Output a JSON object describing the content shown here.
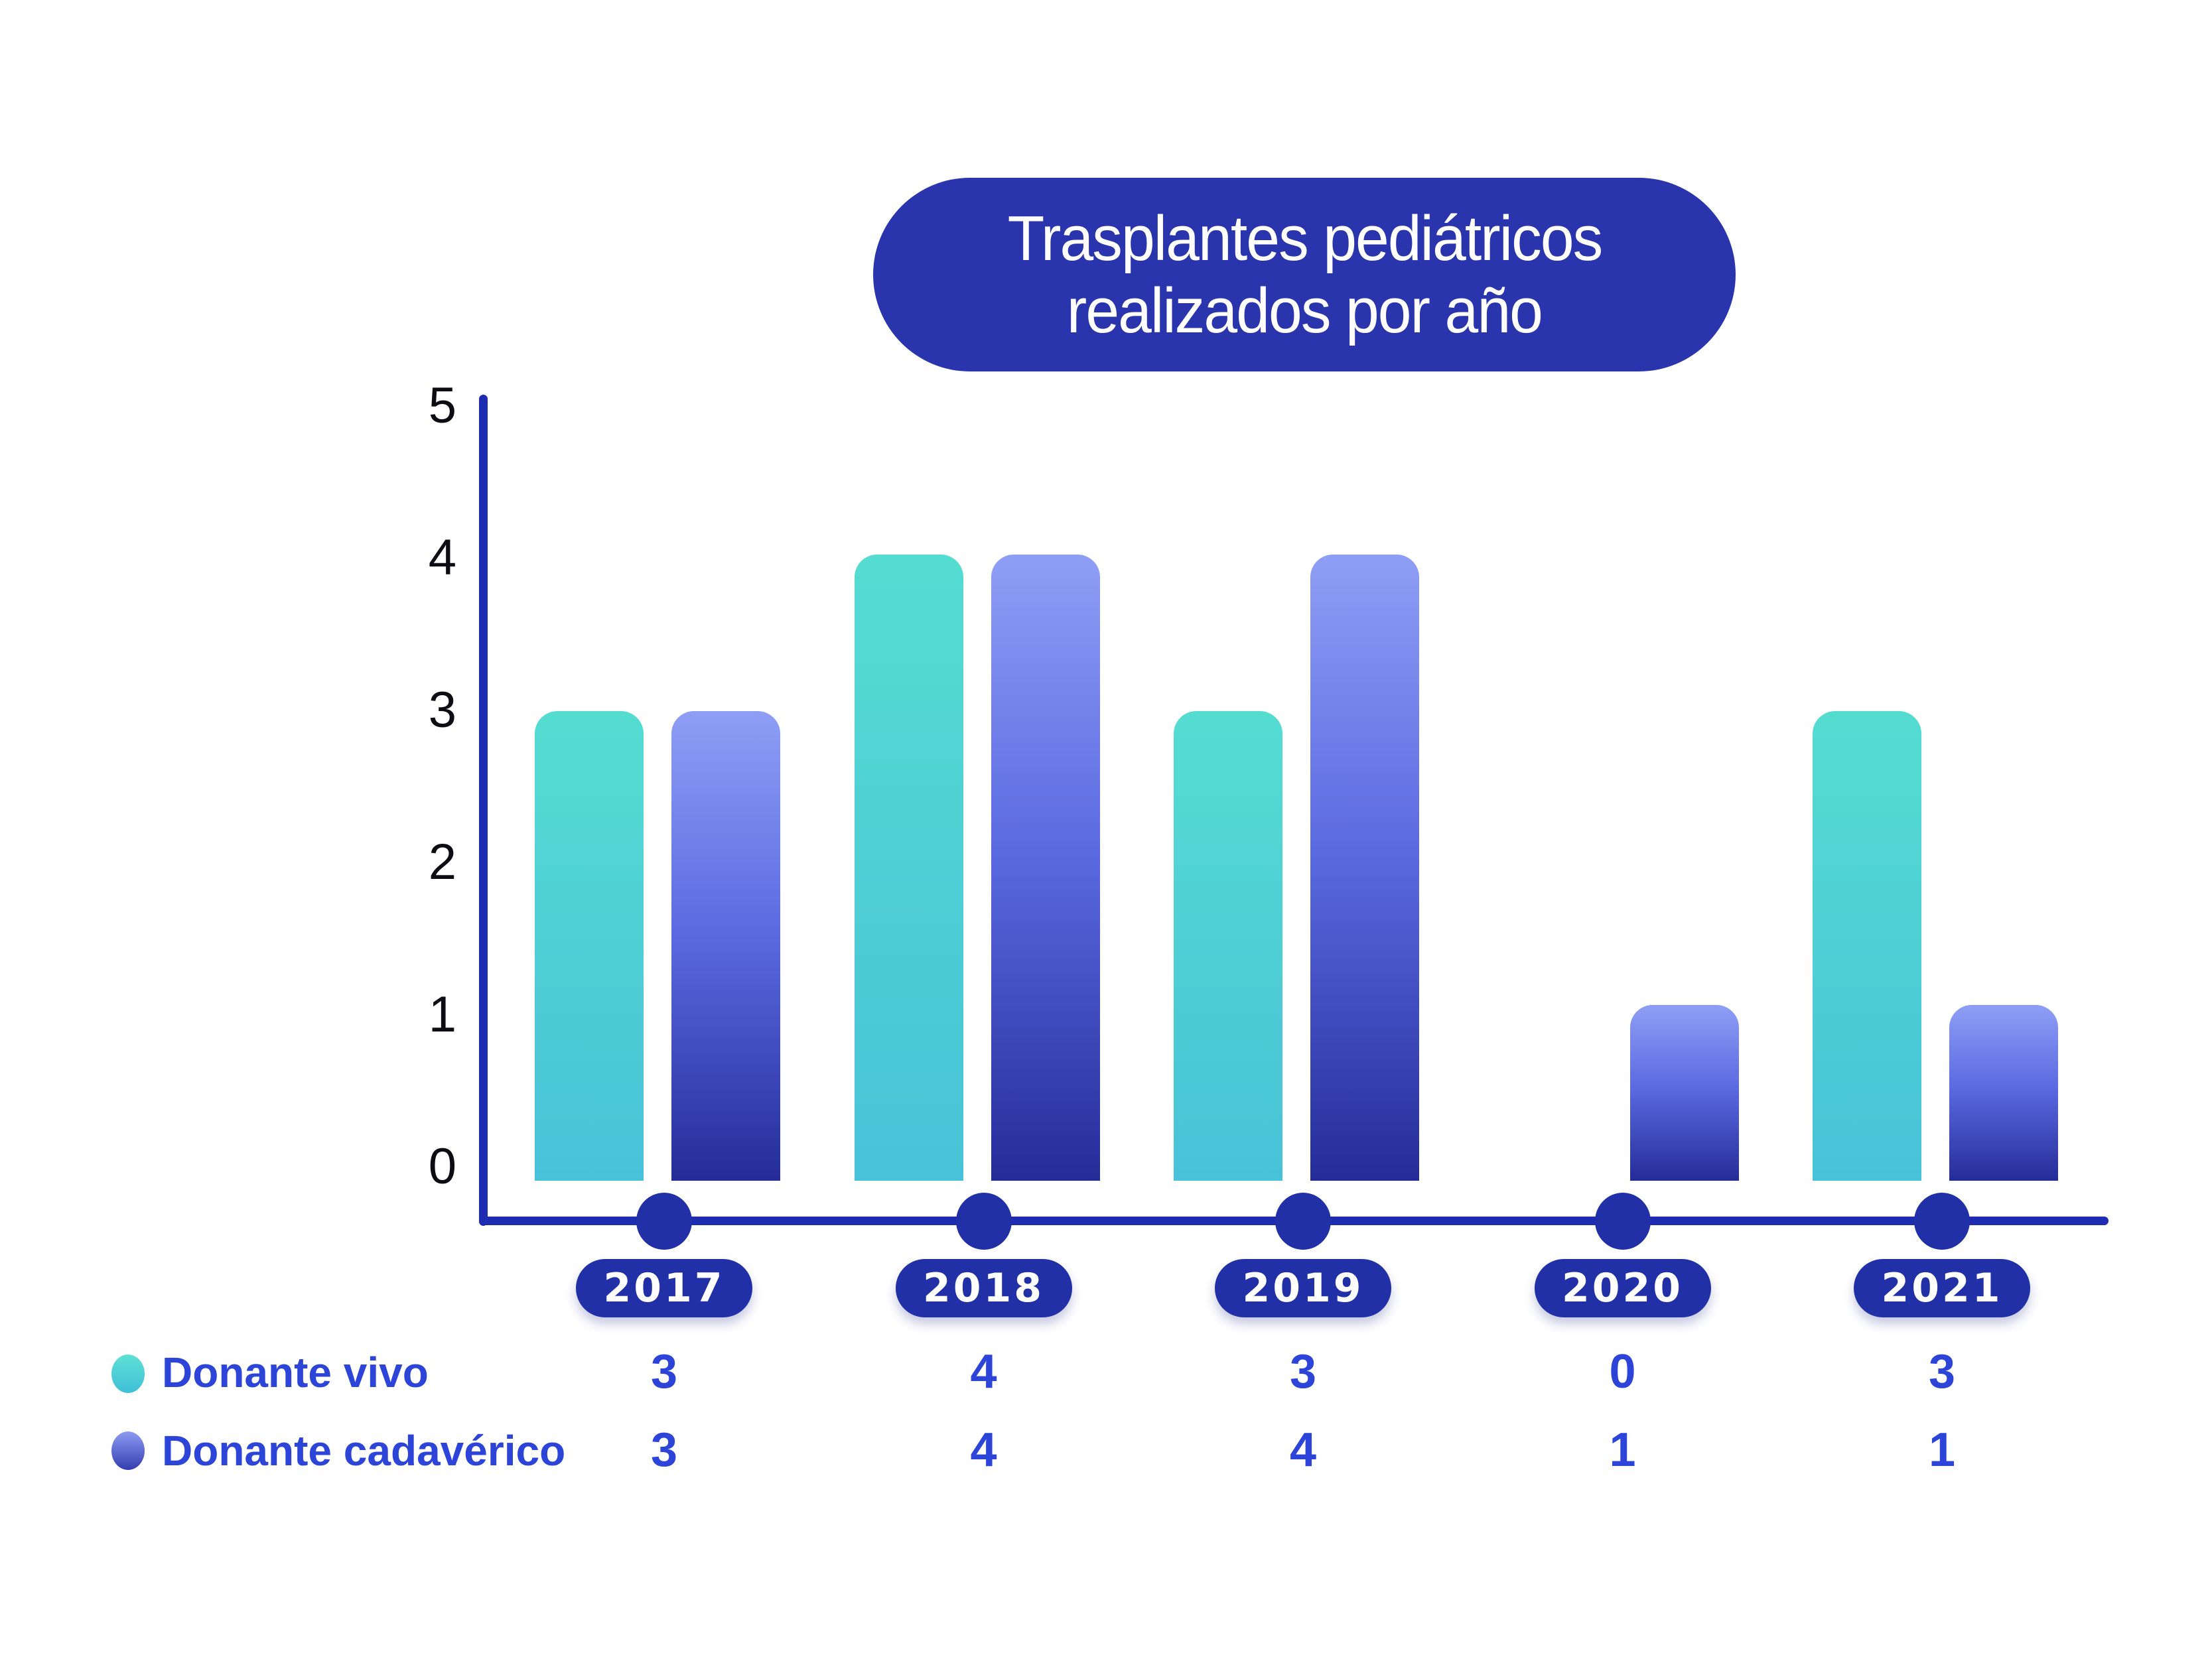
{
  "title": {
    "line1": "Trasplantes pediátricos",
    "line2": "realizados por año"
  },
  "y_axis": {
    "ticks": [
      "5",
      "4",
      "3",
      "2",
      "1",
      "0"
    ]
  },
  "legend": {
    "vivo_label": "Donante vivo",
    "cadaverico_label": "Donante cadavérico"
  },
  "colors": {
    "navy_pill": "#2A34AD",
    "navy_axis": "#1D2CB1",
    "teal_top": "#55DCD1",
    "teal_bottom": "#48C2D8",
    "blue_top": "#8F9EF5",
    "blue_bottom": "#252C98",
    "text_blue": "#2C44D8",
    "tick_black": "#0C0C12",
    "background": "#FFFFFF"
  },
  "chart_data": {
    "type": "bar",
    "title": "Trasplantes pediátricos realizados por año",
    "categories": [
      "2017",
      "2018",
      "2019",
      "2020",
      "2021"
    ],
    "series": [
      {
        "name": "Donante vivo",
        "key": "vivo",
        "color": "#4FD4D3",
        "values": [
          3,
          4,
          3,
          0,
          3
        ]
      },
      {
        "name": "Donante cadavérico",
        "key": "cadaverico",
        "color": "#5A69E0",
        "values": [
          3,
          4,
          4,
          1,
          1
        ]
      }
    ],
    "ylim": [
      0,
      5
    ],
    "y_ticks": [
      5,
      4,
      3,
      2,
      1,
      0
    ],
    "grid": false,
    "legend_position": "bottom-left",
    "value_table_below_axis": true
  }
}
